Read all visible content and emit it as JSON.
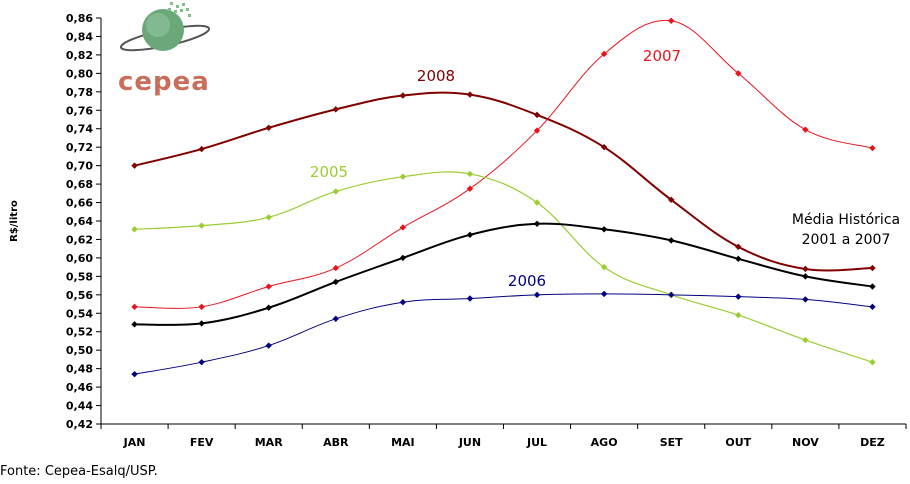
{
  "logo": {
    "text": "cepea"
  },
  "source": "Fonte: Cepea-Esalq/USP.",
  "chart_data": {
    "type": "line",
    "title": "",
    "ylabel": "R$/litro",
    "xlabel": "",
    "ylim": [
      0.42,
      0.86
    ],
    "y_ticks": [
      "0,42",
      "0,44",
      "0,46",
      "0,48",
      "0,50",
      "0,52",
      "0,54",
      "0,56",
      "0,58",
      "0,60",
      "0,62",
      "0,64",
      "0,66",
      "0,68",
      "0,70",
      "0,72",
      "0,74",
      "0,76",
      "0,78",
      "0,80",
      "0,82",
      "0,84",
      "0,86"
    ],
    "categories": [
      "JAN",
      "FEV",
      "MAR",
      "ABR",
      "MAI",
      "JUN",
      "JUL",
      "AGO",
      "SET",
      "OUT",
      "NOV",
      "DEZ"
    ],
    "grid": false,
    "series": [
      {
        "name": "2008",
        "color": "#800000",
        "label_lines": [
          "2008"
        ],
        "values": [
          0.7,
          0.718,
          0.741,
          0.761,
          0.776,
          0.777,
          0.755,
          0.72,
          0.663,
          0.612,
          0.588,
          0.589
        ]
      },
      {
        "name": "2007",
        "color": "#e8141c",
        "label_lines": [
          "2007"
        ],
        "values": [
          0.547,
          0.547,
          0.569,
          0.589,
          0.633,
          0.675,
          0.738,
          0.821,
          0.857,
          0.8,
          0.739,
          0.719
        ]
      },
      {
        "name": "2005",
        "color": "#9acd32",
        "label_lines": [
          "2005"
        ],
        "values": [
          0.631,
          0.635,
          0.644,
          0.672,
          0.688,
          0.691,
          0.66,
          0.59,
          0.56,
          0.538,
          0.511,
          0.487
        ]
      },
      {
        "name": "Média Histórica 2001 a 2007",
        "color": "#000000",
        "label_lines": [
          "Média Histórica",
          "2001 a 2007"
        ],
        "values": [
          0.528,
          0.529,
          0.546,
          0.574,
          0.6,
          0.625,
          0.637,
          0.631,
          0.619,
          0.599,
          0.58,
          0.569
        ]
      },
      {
        "name": "2006",
        "color": "#000080",
        "label_lines": [
          "2006"
        ],
        "values": [
          0.474,
          0.487,
          0.505,
          0.534,
          0.552,
          0.556,
          0.56,
          0.561,
          0.56,
          0.558,
          0.555,
          0.547
        ]
      }
    ]
  }
}
